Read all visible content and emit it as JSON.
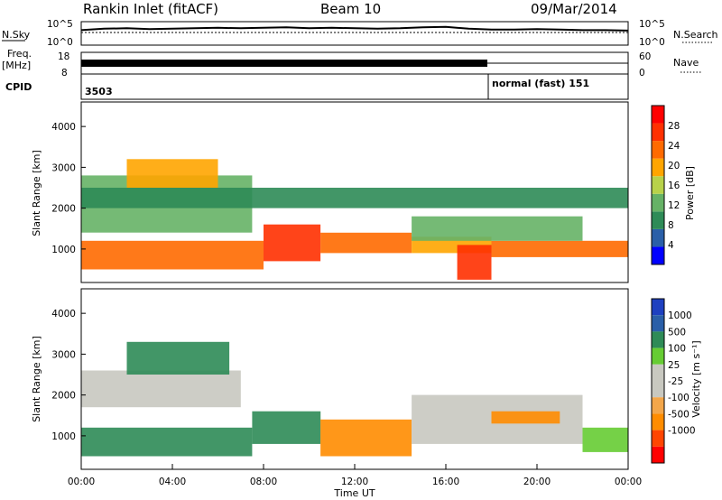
{
  "header": {
    "title": "Rankin Inlet (fitACF)",
    "beam": "Beam 10",
    "date": "09/Mar/2014"
  },
  "sky_panel": {
    "left_label": "N.Sky",
    "right_label": "N.Search",
    "left_ticks": [
      "10^5",
      "10^0"
    ],
    "right_ticks": [
      "10^5",
      "10^0"
    ]
  },
  "freq_panel": {
    "label_line1": "Freq.",
    "label_line2": "[MHz]",
    "right_label": "Nave",
    "left_ticks": [
      "18",
      "8"
    ],
    "right_ticks": [
      "60",
      "0"
    ]
  },
  "cpid_panel": {
    "label": "CPID",
    "segments": [
      {
        "text": "3503",
        "start_hour": 0
      },
      {
        "text": "normal (fast) 151",
        "start_hour": 18
      }
    ]
  },
  "x_axis": {
    "label": "Time UT",
    "tick_labels": [
      "00:00",
      "04:00",
      "08:00",
      "12:00",
      "16:00",
      "20:00",
      "00:00"
    ],
    "range_hours": [
      0,
      24
    ]
  },
  "colors": {
    "power_scale": [
      "#0000ff",
      "#2a5fa8",
      "#2e8b57",
      "#66b266",
      "#b8d24a",
      "#ffa500",
      "#ff6a00",
      "#ff3000",
      "#ff0000"
    ],
    "velocity_scale": [
      "#ff0000",
      "#ff4500",
      "#ff8c00",
      "#f3a64a",
      "#c8c8c0",
      "#c8c8c0",
      "#66cc33",
      "#2e8b57",
      "#2a5fa8",
      "#1e40c0"
    ]
  },
  "chart_data": [
    {
      "type": "line",
      "panel": "sky-search-noise",
      "x": [
        0,
        1,
        2,
        3,
        4,
        5,
        6,
        7,
        8,
        9,
        10,
        11,
        12,
        13,
        14,
        15,
        16,
        17,
        18,
        19,
        20,
        21,
        22,
        23,
        24
      ],
      "series": [
        {
          "name": "N.Sky",
          "values": [
            3.2,
            3.5,
            3.6,
            3.4,
            3.5,
            3.6,
            3.7,
            3.6,
            3.7,
            3.8,
            3.6,
            3.7,
            3.6,
            3.5,
            3.6,
            3.8,
            3.9,
            3.5,
            3.3,
            3.3,
            3.4,
            3.3,
            3.2,
            3.2,
            3.1
          ]
        }
      ],
      "y_scale": "log",
      "ylim": [
        1,
        100000
      ]
    },
    {
      "type": "line",
      "panel": "frequency-nave",
      "x": [
        0,
        24
      ],
      "freq_mhz": [
        10.5,
        10.5
      ],
      "freq_ylim": [
        8,
        18
      ],
      "nave_ylim": [
        0,
        60
      ]
    },
    {
      "type": "heatmap",
      "panel": "power",
      "ylabel": "Slant Range [km]",
      "y_ticks": [
        1000,
        2000,
        3000,
        4000
      ],
      "ylim": [
        180,
        4600
      ],
      "xlim": [
        0,
        24
      ],
      "colorbar_label": "Power [dB]",
      "colorbar_ticks": [
        4,
        8,
        12,
        16,
        20,
        24,
        28
      ],
      "colorbar_range": [
        0,
        32
      ],
      "regions": [
        {
          "x0": 0.0,
          "x1": 8.0,
          "y0": 500,
          "y1": 1200,
          "value": 24
        },
        {
          "x0": 8.0,
          "x1": 10.5,
          "y0": 700,
          "y1": 1600,
          "value": 27
        },
        {
          "x0": 10.5,
          "x1": 14.5,
          "y0": 900,
          "y1": 1400,
          "value": 22
        },
        {
          "x0": 14.5,
          "x1": 18.0,
          "y0": 900,
          "y1": 1300,
          "value": 20
        },
        {
          "x0": 16.5,
          "x1": 18.0,
          "y0": 250,
          "y1": 1100,
          "value": 28
        },
        {
          "x0": 18.0,
          "x1": 24.0,
          "y0": 800,
          "y1": 1200,
          "value": 23
        },
        {
          "x0": 14.5,
          "x1": 22.0,
          "y0": 1200,
          "y1": 1800,
          "value": 12
        },
        {
          "x0": 0.0,
          "x1": 7.5,
          "y0": 1400,
          "y1": 2800,
          "value": 14
        },
        {
          "x0": 0.0,
          "x1": 24.0,
          "y0": 2000,
          "y1": 2500,
          "value": 8
        },
        {
          "x0": 2.0,
          "x1": 6.0,
          "y0": 2500,
          "y1": 3200,
          "value": 18
        }
      ]
    },
    {
      "type": "heatmap",
      "panel": "velocity",
      "ylabel": "Slant Range [km]",
      "y_ticks": [
        1000,
        2000,
        3000,
        4000
      ],
      "ylim": [
        180,
        4600
      ],
      "xlim": [
        0,
        24
      ],
      "colorbar_label": "Velocity [m s⁻¹]",
      "colorbar_ticks": [
        1000,
        500,
        100,
        25,
        -25,
        -100,
        -500,
        -1000
      ],
      "regions": [
        {
          "x0": 0.0,
          "x1": 7.5,
          "y0": 500,
          "y1": 1200,
          "value": 200
        },
        {
          "x0": 7.5,
          "x1": 10.5,
          "y0": 800,
          "y1": 1600,
          "value": 400
        },
        {
          "x0": 10.5,
          "x1": 14.5,
          "y0": 500,
          "y1": 1400,
          "value": -150
        },
        {
          "x0": 14.5,
          "x1": 22.0,
          "y0": 800,
          "y1": 2000,
          "value": 0
        },
        {
          "x0": 18.0,
          "x1": 21.0,
          "y0": 1300,
          "y1": 1600,
          "value": -150
        },
        {
          "x0": 0.0,
          "x1": 7.0,
          "y0": 1700,
          "y1": 2600,
          "value": 0
        },
        {
          "x0": 2.0,
          "x1": 6.5,
          "y0": 2500,
          "y1": 3300,
          "value": 150
        },
        {
          "x0": 22.0,
          "x1": 24.0,
          "y0": 600,
          "y1": 1200,
          "value": 60
        }
      ]
    }
  ]
}
